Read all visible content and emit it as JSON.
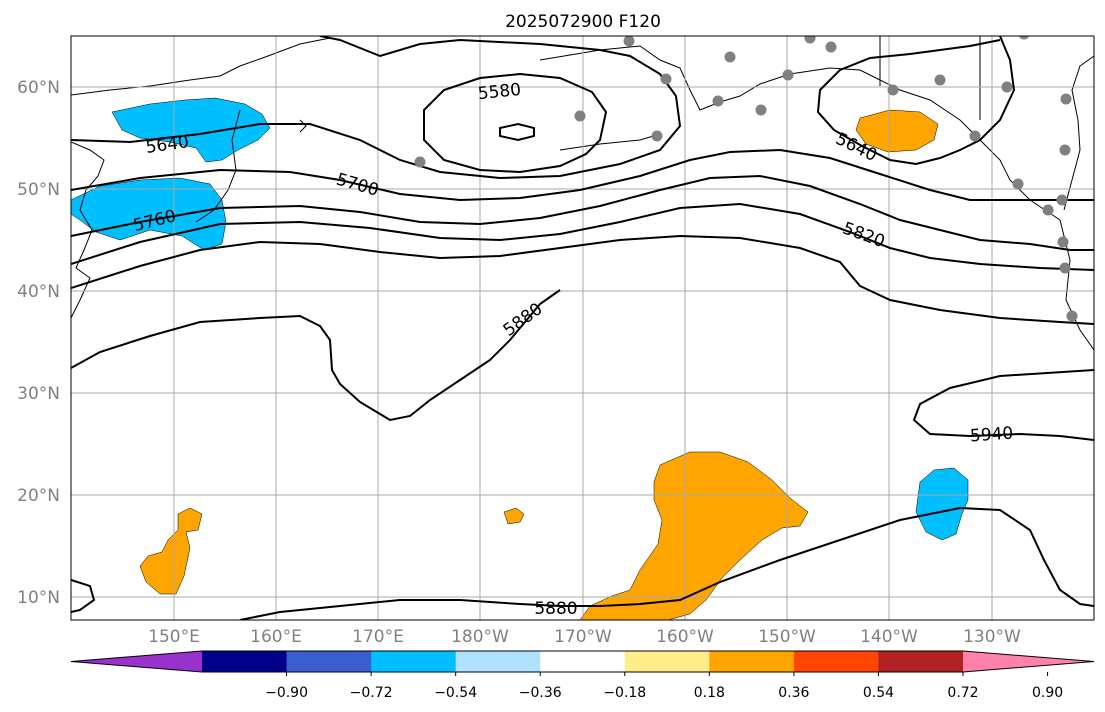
{
  "title": "2025072900 F120",
  "lat_labels": [
    "60°N",
    "50°N",
    "40°N",
    "30°N",
    "20°N",
    "10°N"
  ],
  "lon_labels": [
    "150°E",
    "160°E",
    "170°E",
    "180°W",
    "170°W",
    "160°W",
    "150°W",
    "140°W",
    "130°W"
  ],
  "contour_labels": {
    "c5580": "5580",
    "c5640a": "5640",
    "c5640b": "5640",
    "c5700": "5700",
    "c5760": "5760",
    "c5820": "5820",
    "c5880a": "5880",
    "c5880b": "5880",
    "c5940": "5940"
  },
  "colorbar": {
    "colors": [
      "#9932CC",
      "#00008B",
      "#3A5FCD",
      "#00BFFF",
      "#B0E2FF",
      "#FFFFFF",
      "#FFEC8B",
      "#FFA500",
      "#FF4500",
      "#B22222",
      "#FF82AB"
    ],
    "ticks": [
      "−0.90",
      "−0.72",
      "−0.54",
      "−0.36",
      "−0.18",
      "0.18",
      "0.36",
      "0.54",
      "0.72",
      "0.90"
    ]
  },
  "colors": {
    "negative": "#00BFFF",
    "positive": "#FFA500",
    "grid": "#A9A9A9",
    "station": "#808080"
  }
}
